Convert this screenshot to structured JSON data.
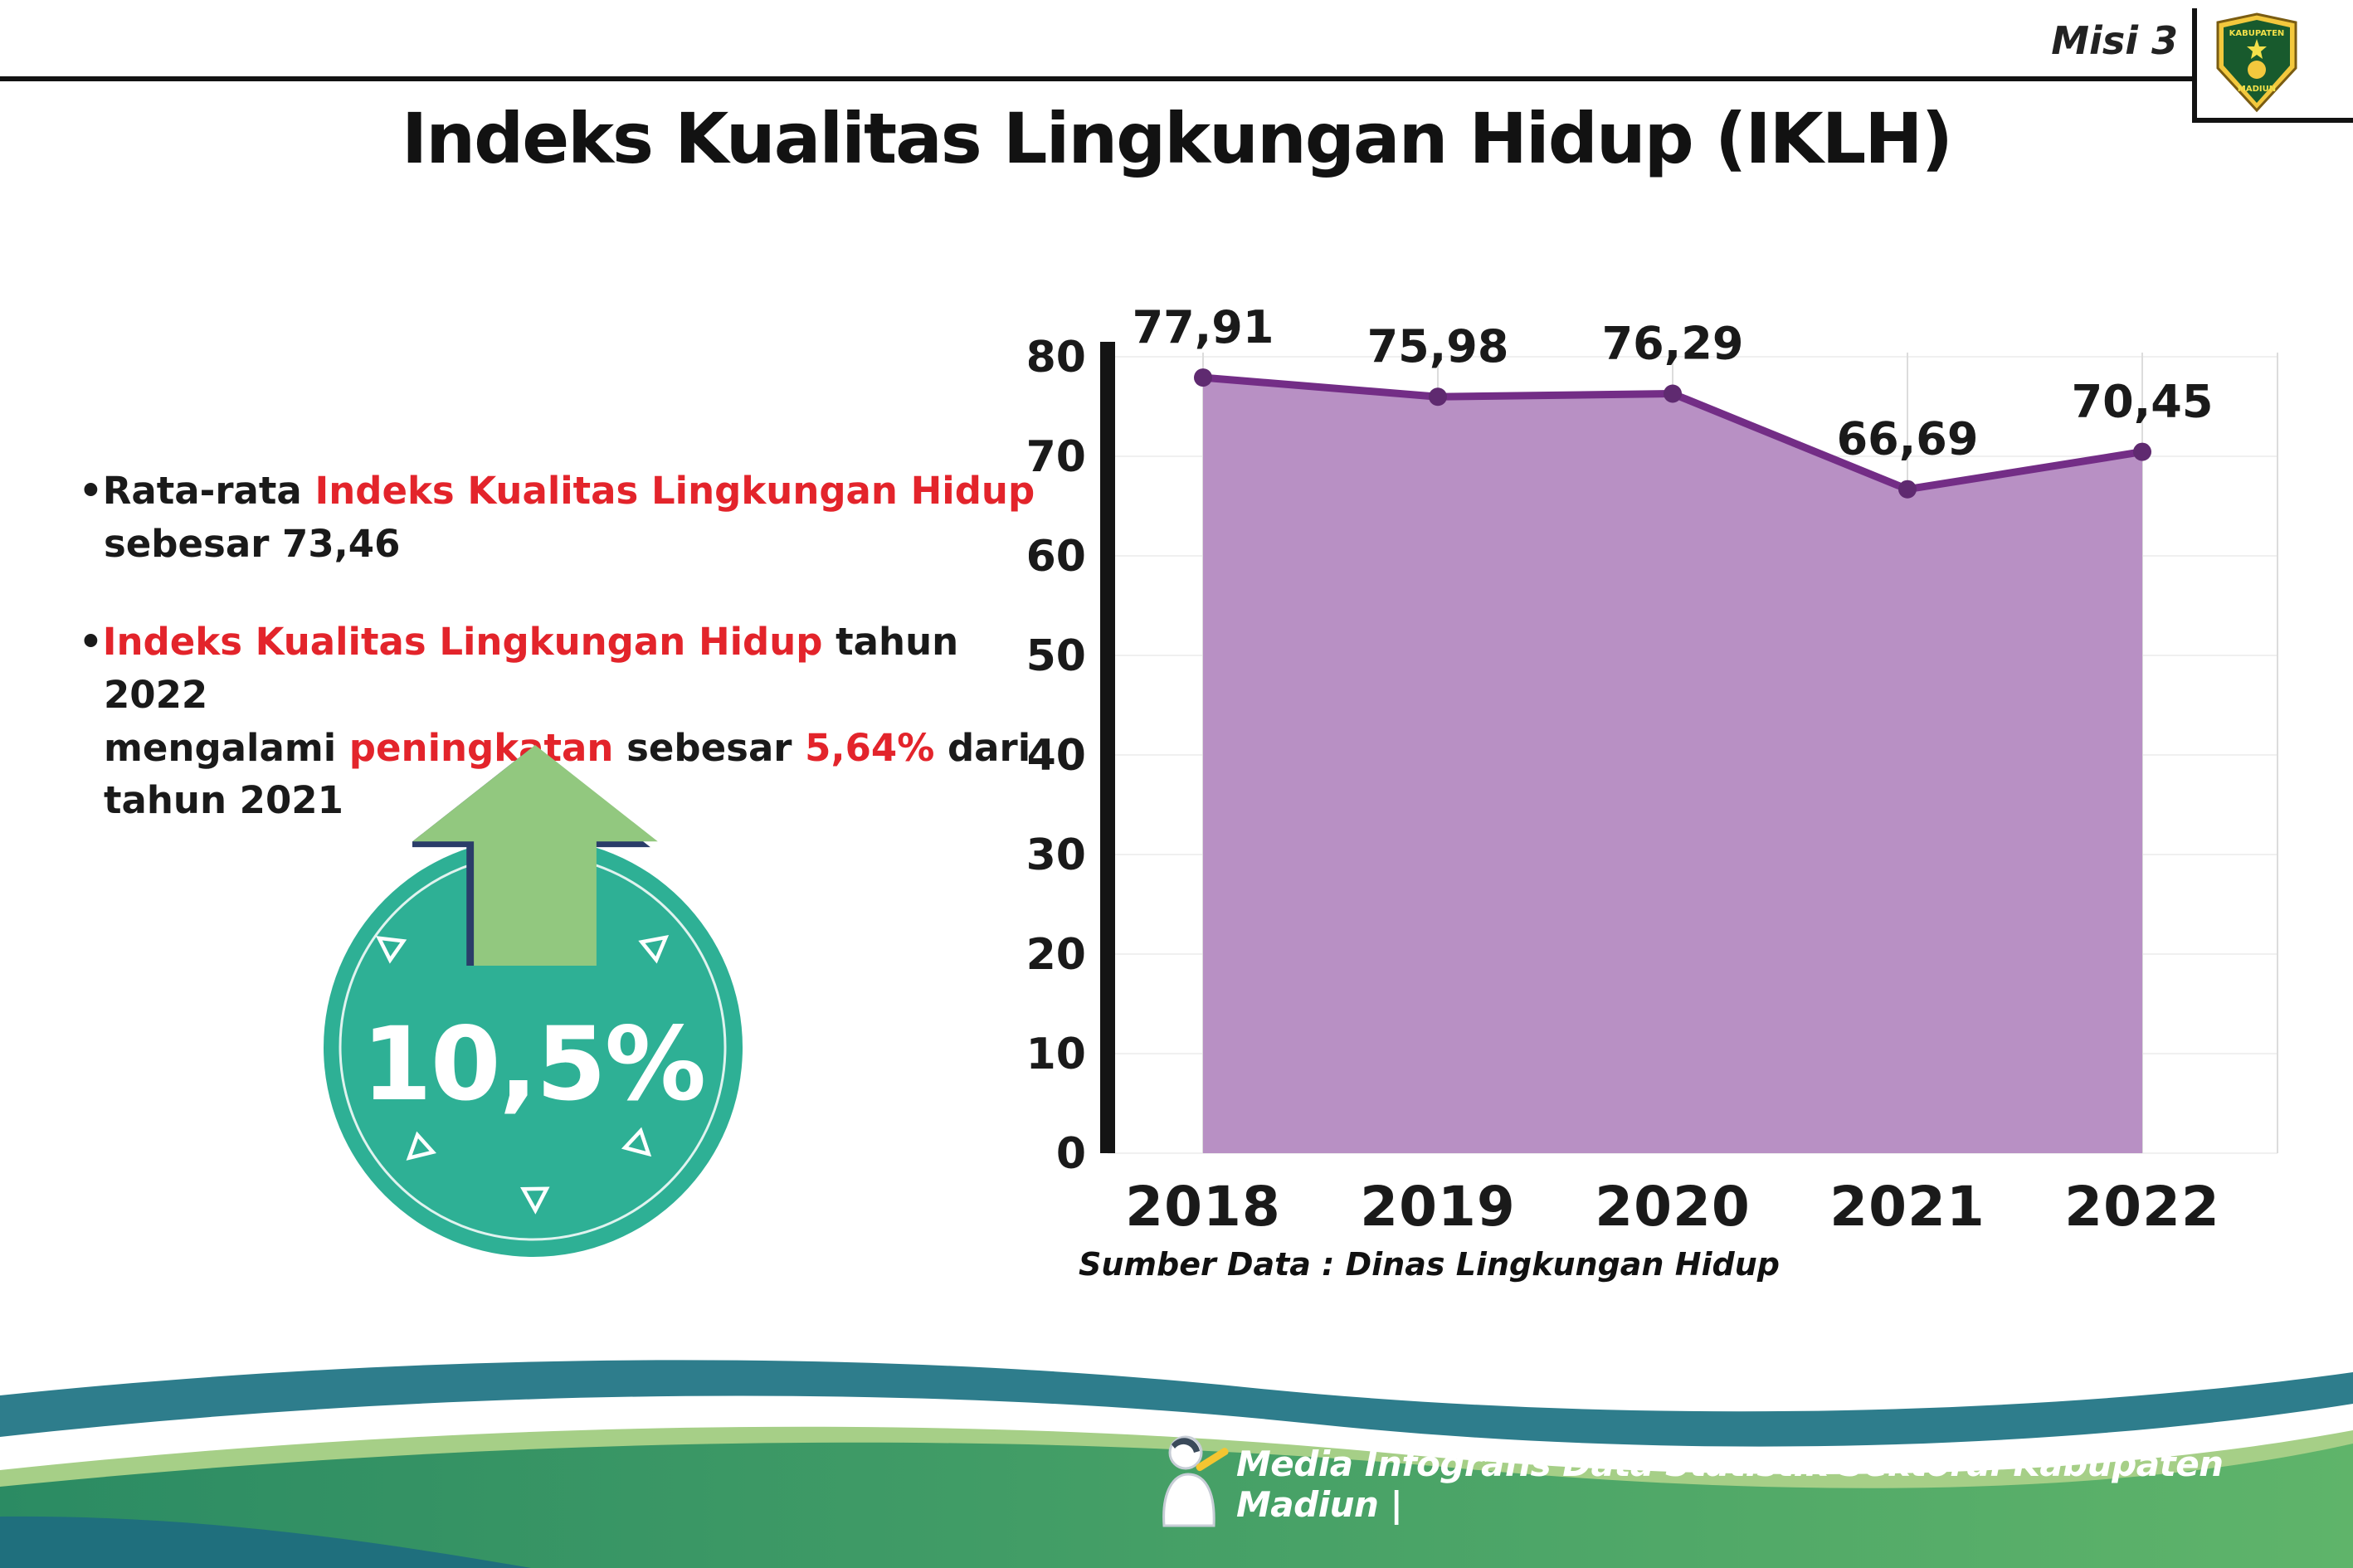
{
  "theme": {
    "red": "#e3242b",
    "text": "#1a1a1a",
    "bullet_marker": "•"
  },
  "header": {
    "misi": "Misi 3",
    "title": "Indeks Kualitas Lingkungan Hidup (IKLH)",
    "logo": {
      "top_text": "KABUPATEN",
      "bottom_text": "MADIUN"
    }
  },
  "bullets": [
    {
      "parts": [
        {
          "text": "Rata-rata ",
          "red": false
        },
        {
          "text": "Indeks Kualitas Lingkungan Hidup",
          "red": true
        },
        {
          "break": true
        },
        {
          "text": "sebesar 73,46",
          "red": false
        }
      ]
    },
    {
      "parts": [
        {
          "text": "Indeks Kualitas Lingkungan Hidup",
          "red": true
        },
        {
          "text": " tahun 2022",
          "red": false
        },
        {
          "break": true
        },
        {
          "text": "mengalami ",
          "red": false
        },
        {
          "text": "peningkatan",
          "red": true
        },
        {
          "text": " sebesar ",
          "red": false
        },
        {
          "text": "5,64%",
          "red": true
        },
        {
          "text": " dari",
          "red": false
        },
        {
          "break": true
        },
        {
          "text": "tahun 2021",
          "red": false
        }
      ]
    }
  ],
  "badge": {
    "value": "10,5%",
    "circle_color": "#2eb095",
    "arrow_color": "#92c87f",
    "arrow_outline_color": "#2a3d69"
  },
  "chart_data": {
    "type": "area",
    "title": "Indeks Kualitas Lingkungan Hidup (IKLH)",
    "categories": [
      "2018",
      "2019",
      "2020",
      "2021",
      "2022"
    ],
    "values": [
      77.91,
      75.98,
      76.29,
      66.69,
      70.45
    ],
    "value_labels": [
      "77,91",
      "75,98",
      "76,29",
      "66,69",
      "70,45"
    ],
    "xlabel": "",
    "ylabel": "",
    "ylim": [
      0,
      80
    ],
    "ytick_step": 10,
    "grid": true,
    "legend": false,
    "fill_color": "#b890c4",
    "line_color": "#732d86",
    "point_color": "#5f2a70",
    "axis_color": "#141414",
    "grid_color": "#dcdcdc",
    "label_color": "#1a1a1a",
    "source": "Sumber Data : Dinas Lingkungan Hidup"
  },
  "footer": {
    "text": "Media Infografis Data Statistik Sektoral Kabupaten Madiun |",
    "colors": {
      "teal": "#2e7d8c",
      "light_green": "#a6cf87",
      "band_left": "#2b8b63",
      "band_right": "#5fb46a",
      "deep_teal": "#1f6f7d"
    }
  }
}
